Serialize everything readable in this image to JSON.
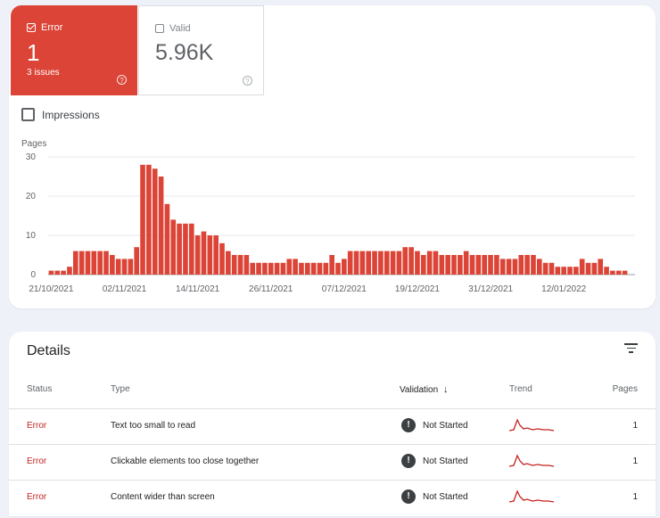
{
  "tiles": {
    "error": {
      "label": "Error",
      "value": "1",
      "sub": "3 issues",
      "help": "?"
    },
    "valid": {
      "label": "Valid",
      "value": "5.96K",
      "help": "?"
    }
  },
  "impressions_label": "Impressions",
  "colors": {
    "error": "#db4437",
    "status_text": "#c5221f"
  },
  "chart_data": {
    "type": "bar",
    "ylabel": "Pages",
    "ylim": [
      0,
      30
    ],
    "yticks": [
      0,
      10,
      20,
      30
    ],
    "xtick_labels": [
      "21/10/2021",
      "02/11/2021",
      "14/11/2021",
      "26/11/2021",
      "07/12/2021",
      "19/12/2021",
      "31/12/2021",
      "12/01/2022"
    ],
    "color": "#db4437",
    "values": [
      1,
      1,
      1,
      2,
      6,
      6,
      6,
      6,
      6,
      6,
      5,
      4,
      4,
      4,
      7,
      28,
      28,
      27,
      25,
      18,
      14,
      13,
      13,
      13,
      10,
      11,
      10,
      10,
      8,
      6,
      5,
      5,
      5,
      3,
      3,
      3,
      3,
      3,
      3,
      4,
      4,
      3,
      3,
      3,
      3,
      3,
      5,
      3,
      4,
      6,
      6,
      6,
      6,
      6,
      6,
      6,
      6,
      6,
      7,
      7,
      6,
      5,
      6,
      6,
      5,
      5,
      5,
      5,
      6,
      5,
      5,
      5,
      5,
      5,
      4,
      4,
      4,
      5,
      5,
      5,
      4,
      3,
      3,
      2,
      2,
      2,
      2,
      4,
      3,
      3,
      4,
      2,
      1,
      1,
      1
    ]
  },
  "details": {
    "title": "Details",
    "headers": {
      "status": "Status",
      "type": "Type",
      "validation": "Validation",
      "trend": "Trend",
      "pages": "Pages"
    },
    "rows": [
      {
        "status": "Error",
        "type": "Text too small to read",
        "validation": "Not Started",
        "pages": "1"
      },
      {
        "status": "Error",
        "type": "Clickable elements too close together",
        "validation": "Not Started",
        "pages": "1"
      },
      {
        "status": "Error",
        "type": "Content wider than screen",
        "validation": "Not Started",
        "pages": "1"
      }
    ]
  }
}
